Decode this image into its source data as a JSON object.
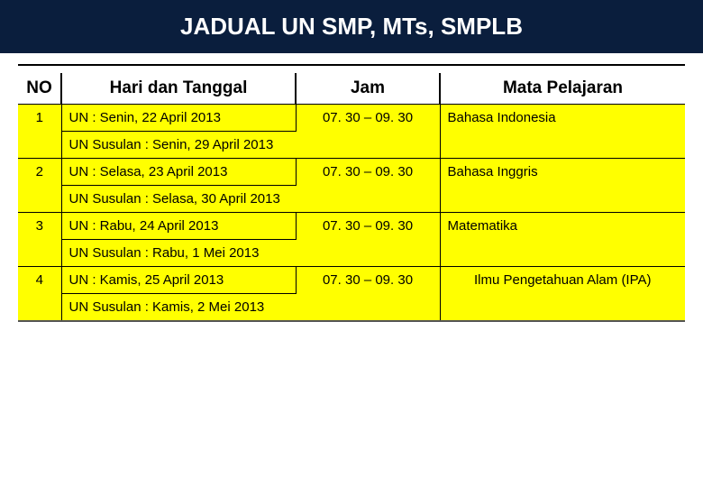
{
  "title": "JADUAL  UN  SMP, MTs, SMPLB",
  "headers": {
    "no": "NO",
    "date": "Hari dan Tanggal",
    "time": "Jam",
    "subject": "Mata Pelajaran"
  },
  "rows": [
    {
      "no": "1",
      "main": "UN : Senin, 22 April 2013",
      "susulan": "UN Susulan : Senin, 29 April 2013",
      "time": "07. 30 – 09. 30",
      "subject": "Bahasa Indonesia",
      "subjectCenter": false
    },
    {
      "no": "2",
      "main": "UN : Selasa, 23 April 2013",
      "susulan": "UN Susulan : Selasa, 30 April 2013",
      "time": "07. 30 – 09. 30",
      "subject": "Bahasa Inggris",
      "subjectCenter": false
    },
    {
      "no": "3",
      "main": "UN : Rabu,  24 April 2013",
      "susulan": "UN Susulan : Rabu, 1 Mei 2013",
      "time": "07. 30 – 09. 30",
      "subject": "Matematika",
      "subjectCenter": false
    },
    {
      "no": "4",
      "main": "UN : Kamis, 25 April 2013",
      "susulan": "UN Susulan : Kamis, 2 Mei 2013",
      "time": "07. 30 – 09. 30",
      "subject": "Ilmu Pengetahuan Alam (IPA)",
      "subjectCenter": true
    }
  ],
  "colors": {
    "banner_bg": "#0a1e3d",
    "row_bg": "#ffff00",
    "text": "#000000"
  }
}
